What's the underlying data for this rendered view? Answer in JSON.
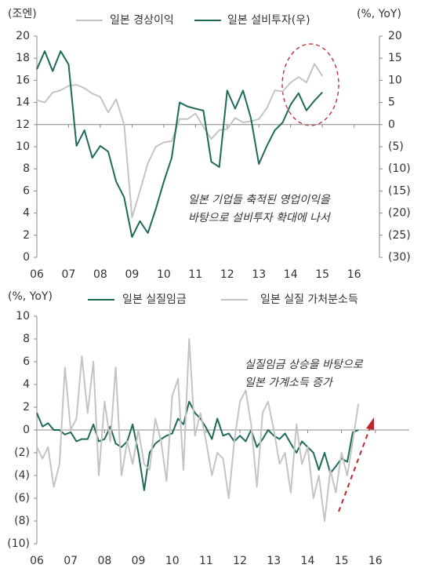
{
  "chart_data": [
    {
      "type": "line",
      "left_axis_label": "(조엔)",
      "right_axis_label": "(%, YoY)",
      "annotations": [
        "일본 기업들 축적된 영업이익을",
        "바탕으로 설비투자 확대에 나서"
      ],
      "x": [
        6,
        6.25,
        6.5,
        6.75,
        7,
        7.25,
        7.5,
        7.75,
        8,
        8.25,
        8.5,
        8.75,
        9,
        9.25,
        9.5,
        9.75,
        10,
        10.25,
        10.5,
        10.75,
        11,
        11.25,
        11.5,
        11.75,
        12,
        12.25,
        12.5,
        12.75,
        13,
        13.25,
        13.5,
        13.75,
        14,
        14.25,
        14.5,
        14.75,
        15
      ],
      "xlim": [
        6,
        16.8
      ],
      "xticks": [
        {
          "value": 6,
          "label": "06"
        },
        {
          "value": 7,
          "label": "07"
        },
        {
          "value": 8,
          "label": "08"
        },
        {
          "value": 9,
          "label": "09"
        },
        {
          "value": 10,
          "label": "10"
        },
        {
          "value": 11,
          "label": "11"
        },
        {
          "value": 12,
          "label": "12"
        },
        {
          "value": 13,
          "label": "13"
        },
        {
          "value": 14,
          "label": "14"
        },
        {
          "value": 15,
          "label": "15"
        },
        {
          "value": 16,
          "label": "16"
        }
      ],
      "ylim": [
        0,
        20
      ],
      "yticks": [
        0,
        2,
        4,
        6,
        8,
        10,
        12,
        14,
        16,
        18,
        20
      ],
      "y2lim": [
        -30,
        20
      ],
      "y2ticks": [
        {
          "value": -30,
          "label": "(30)"
        },
        {
          "value": -25,
          "label": "(25)"
        },
        {
          "value": -20,
          "label": "(20)"
        },
        {
          "value": -15,
          "label": "(15)"
        },
        {
          "value": -10,
          "label": "(10)"
        },
        {
          "value": -5,
          "label": "(5)"
        },
        0,
        5,
        10,
        15,
        20
      ],
      "series": [
        {
          "name": "일본 경상이익",
          "color": "#c4c4c4",
          "values": [
            14.2,
            14.0,
            14.9,
            15.1,
            15.5,
            15.6,
            15.3,
            14.8,
            14.5,
            13.1,
            14.3,
            12.0,
            3.6,
            6.0,
            8.5,
            10.0,
            10.4,
            10.5,
            12.5,
            12.5,
            13.0,
            11.8,
            10.7,
            11.5,
            11.6,
            12.6,
            12.2,
            12.3,
            12.5,
            13.5,
            15.1,
            15.0,
            15.8,
            16.3,
            15.8,
            17.5,
            16.4
          ]
        },
        {
          "name": "일본 설비투자(우)",
          "color": "#1e6a58",
          "axis": "y2",
          "values": [
            12.5,
            16.6,
            12.1,
            16.6,
            13.6,
            -4.8,
            -1.3,
            -7.5,
            -4.8,
            -6.1,
            -12.9,
            -16.4,
            -25.4,
            -21.8,
            -24.5,
            -19.1,
            -12.9,
            -7.5,
            5.0,
            4.1,
            3.6,
            3.2,
            -8.4,
            -9.6,
            7.7,
            3.6,
            7.7,
            1.4,
            -8.9,
            -4.8,
            -1.3,
            0.5,
            4.5,
            7.1,
            3.2,
            5.4,
            7.3
          ]
        }
      ]
    },
    {
      "type": "line",
      "left_axis_label": "(%, YoY)",
      "annotations": [
        "실질임금 상승을 바탕으로",
        "일본 가계소득 증가"
      ],
      "x": [
        6,
        6.17,
        6.33,
        6.5,
        6.67,
        6.83,
        7,
        7.17,
        7.33,
        7.5,
        7.67,
        7.83,
        8,
        8.17,
        8.33,
        8.5,
        8.67,
        8.83,
        9,
        9.17,
        9.33,
        9.5,
        9.67,
        9.83,
        10,
        10.17,
        10.33,
        10.5,
        10.67,
        10.83,
        11,
        11.17,
        11.33,
        11.5,
        11.67,
        11.83,
        12,
        12.17,
        12.33,
        12.5,
        12.67,
        12.83,
        13,
        13.17,
        13.33,
        13.5,
        13.67,
        13.83,
        14,
        14.17,
        14.33,
        14.5,
        14.67,
        14.83,
        15,
        15.17,
        15.33,
        15.5
      ],
      "xlim": [
        6,
        17
      ],
      "xticks": [
        {
          "value": 6,
          "label": "06"
        },
        {
          "value": 7,
          "label": "07"
        },
        {
          "value": 8,
          "label": "08"
        },
        {
          "value": 9,
          "label": "09"
        },
        {
          "value": 10,
          "label": "10"
        },
        {
          "value": 11,
          "label": "11"
        },
        {
          "value": 12,
          "label": "12"
        },
        {
          "value": 13,
          "label": "13"
        },
        {
          "value": 14,
          "label": "14"
        },
        {
          "value": 15,
          "label": "15"
        },
        {
          "value": 16,
          "label": "16"
        }
      ],
      "ylim": [
        -10,
        10
      ],
      "yticks": [
        {
          "value": -10,
          "label": "(10)"
        },
        {
          "value": -8,
          "label": "(8)"
        },
        {
          "value": -6,
          "label": "(6)"
        },
        {
          "value": -4,
          "label": "(4)"
        },
        {
          "value": -2,
          "label": "(2)"
        },
        0,
        2,
        4,
        6,
        8,
        10
      ],
      "series": [
        {
          "name": "일본 실질임금",
          "color": "#1e6a58",
          "values": [
            1.5,
            0.3,
            0.6,
            0.0,
            0.0,
            -0.4,
            -0.2,
            -1.0,
            -0.8,
            -0.8,
            0.5,
            -1.0,
            -0.8,
            0.3,
            -1.2,
            -1.5,
            -1.0,
            0.5,
            -2.0,
            -5.3,
            -2.0,
            -1.2,
            -0.8,
            -0.5,
            -0.3,
            1.0,
            0.5,
            2.5,
            1.5,
            1.0,
            0.2,
            -0.8,
            1.0,
            -0.5,
            -0.3,
            -1.0,
            -0.5,
            -1.0,
            0.0,
            -1.5,
            -0.8,
            0.0,
            -0.5,
            -0.8,
            -0.3,
            -1.2,
            -2.0,
            -1.0,
            -1.5,
            -2.0,
            -3.5,
            -2.0,
            -3.8,
            -3.2,
            -2.5,
            -2.8,
            -0.2,
            0.0
          ]
        },
        {
          "name": "일본 실질 가처분소득",
          "color": "#c4c4c4",
          "values": [
            -1.5,
            -2.5,
            -1.5,
            -5.0,
            -3.0,
            5.5,
            0.0,
            1.0,
            6.5,
            1.5,
            6.0,
            -4.0,
            2.5,
            -1.0,
            5.5,
            -4.0,
            -1.0,
            -3.0,
            0.0,
            -3.0,
            -3.5,
            1.0,
            -1.0,
            -4.5,
            3.0,
            4.5,
            -3.5,
            8.0,
            -0.5,
            1.5,
            -1.0,
            -4.0,
            -2.0,
            -2.5,
            -6.0,
            -1.0,
            2.5,
            3.5,
            0.5,
            -5.0,
            1.5,
            2.5,
            0.0,
            -3.0,
            -2.0,
            -5.5,
            0.5,
            -3.0,
            -1.5,
            -6.0,
            -4.0,
            -8.0,
            -3.5,
            -5.5,
            -2.0,
            -4.0,
            -1.0,
            2.3
          ]
        }
      ]
    }
  ]
}
